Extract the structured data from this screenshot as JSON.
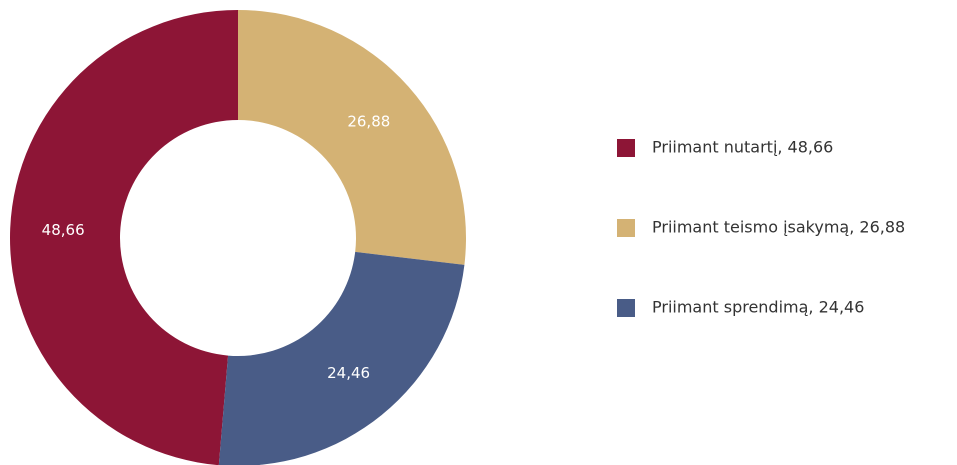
{
  "chart_data": {
    "type": "donut",
    "categories": [
      "Priimant nutartį",
      "Priimant teismo įsakymą",
      "Priimant sprendimą"
    ],
    "values": [
      48.66,
      26.88,
      24.46
    ],
    "value_labels": [
      "48,66",
      "26,88",
      "24,46"
    ],
    "legend_labels": [
      "Priimant nutartį, 48,66",
      "Priimant teismo įsakymą, 26,88",
      "Priimant sprendimą, 24,46"
    ],
    "colors": [
      "#8d1536",
      "#d4b274",
      "#495c87"
    ]
  }
}
